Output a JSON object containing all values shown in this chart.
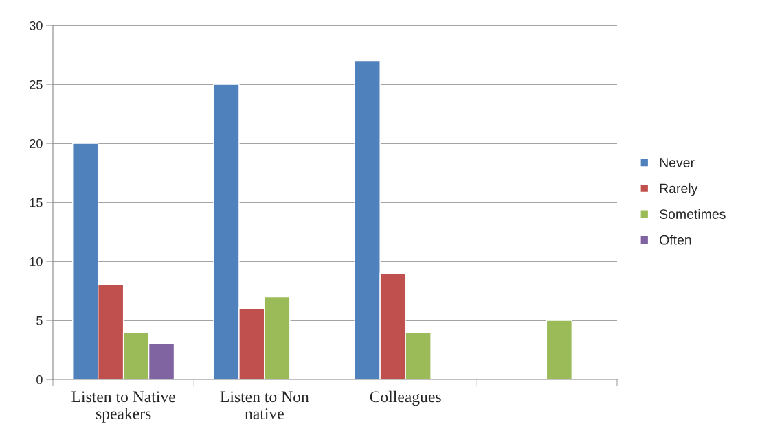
{
  "chart_data": {
    "type": "bar",
    "categories": [
      "Listen to Native speakers",
      "Listen to Non native",
      "Colleagues",
      null
    ],
    "series": [
      {
        "name": "Never",
        "color": "#4f81bd",
        "values": [
          20,
          25,
          27,
          null
        ]
      },
      {
        "name": "Rarely",
        "color": "#c0504d",
        "values": [
          8,
          6,
          9,
          null
        ]
      },
      {
        "name": "Sometimes",
        "color": "#9bbb59",
        "values": [
          4,
          7,
          4,
          5
        ]
      },
      {
        "name": "Often",
        "color": "#8064a2",
        "values": [
          3,
          null,
          null,
          null
        ]
      }
    ],
    "ylim": [
      0,
      30
    ],
    "yticks": [
      0,
      5,
      10,
      15,
      20,
      25,
      30
    ],
    "grid": "y",
    "legend": "right"
  }
}
